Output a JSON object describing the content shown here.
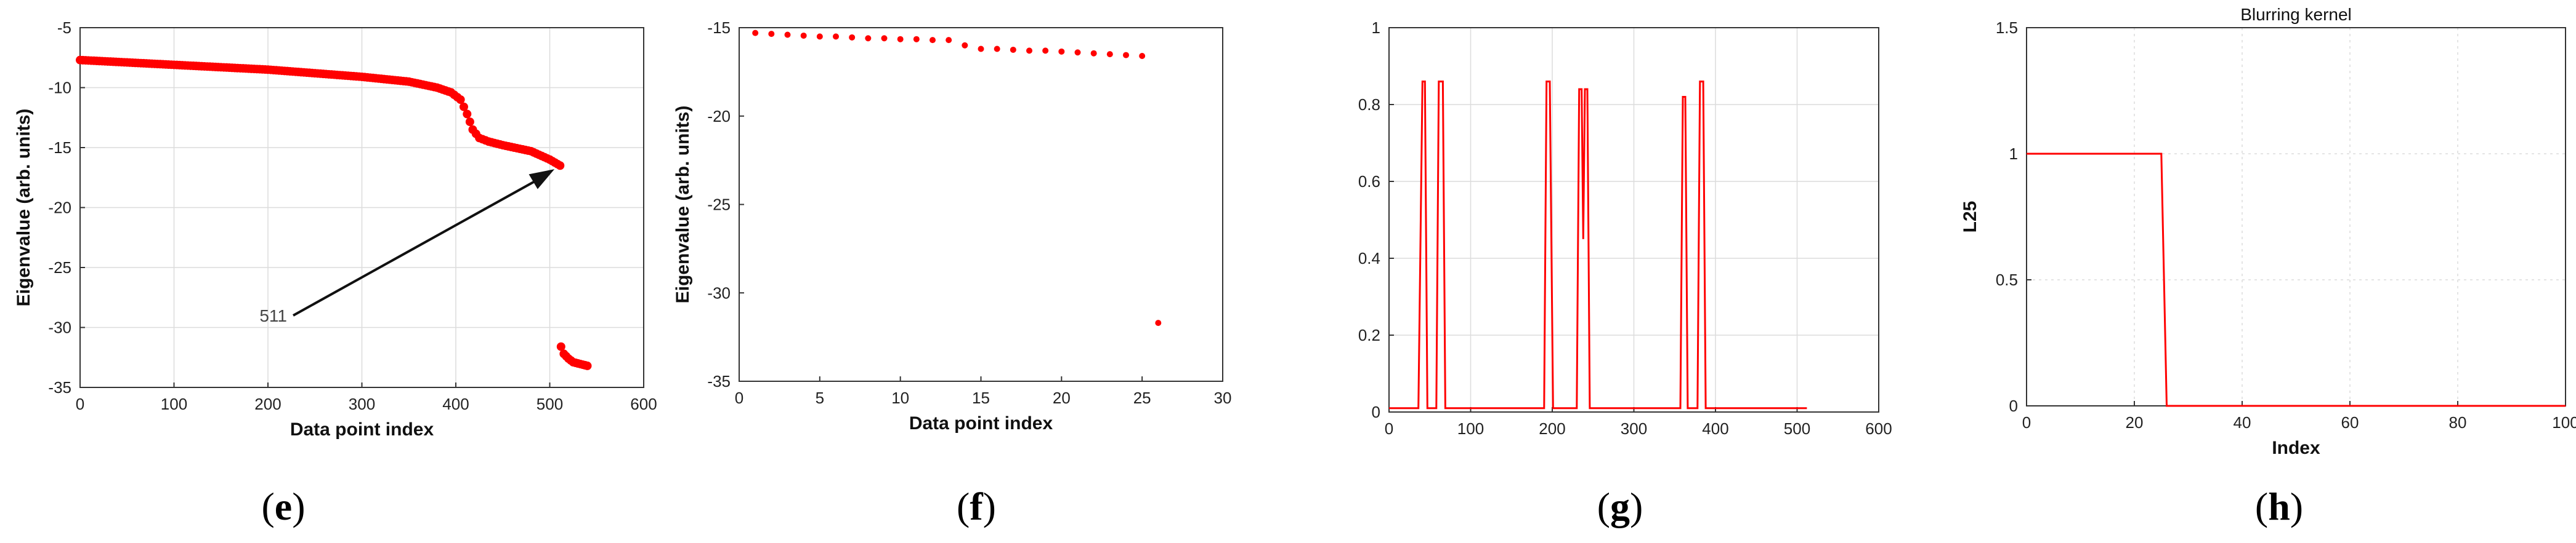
{
  "chart_data": [
    {
      "panel_label": "e",
      "type": "scatter",
      "xlabel": "Data point index",
      "ylabel": "Eigenvalue (arb. units)",
      "xlim": [
        0,
        600
      ],
      "ylim": [
        -35,
        -5
      ],
      "xticks": [
        0,
        100,
        200,
        300,
        400,
        500,
        600
      ],
      "yticks": [
        -5,
        -10,
        -15,
        -20,
        -25,
        -30,
        -35
      ],
      "grid": true,
      "color": "#ff0000",
      "annotation": {
        "text": "511",
        "x": 240,
        "y": -29,
        "arrow_to": [
          505,
          -16.8
        ]
      },
      "series": [
        {
          "x": [
            0,
            50,
            100,
            150,
            200,
            250,
            300,
            350,
            380,
            395,
            405,
            412,
            418,
            425,
            435,
            450,
            480,
            500,
            511
          ],
          "y": [
            -7.7,
            -7.9,
            -8.1,
            -8.3,
            -8.5,
            -8.8,
            -9.1,
            -9.5,
            -10.0,
            -10.4,
            -11.0,
            -12.2,
            -13.5,
            -14.2,
            -14.5,
            -14.8,
            -15.3,
            -16.0,
            -16.5
          ]
        },
        {
          "x": [
            512,
            515,
            520,
            525,
            530,
            535,
            540
          ],
          "y": [
            -31.6,
            -32.2,
            -32.6,
            -32.9,
            -33.0,
            -33.1,
            -33.2
          ]
        }
      ]
    },
    {
      "panel_label": "f",
      "type": "scatter",
      "xlabel": "Data point index",
      "ylabel": "Eigenvalue (arb. units)",
      "xlim": [
        0,
        30
      ],
      "ylim": [
        -35,
        -15
      ],
      "xticks": [
        0,
        5,
        10,
        15,
        20,
        25,
        30
      ],
      "yticks": [
        -15,
        -20,
        -25,
        -30,
        -35
      ],
      "grid": false,
      "color": "#ff0000",
      "series": [
        {
          "x": [
            1,
            2,
            3,
            4,
            5,
            6,
            7,
            8,
            9,
            10,
            11,
            12,
            13,
            14,
            15,
            16,
            17,
            18,
            19,
            20,
            21,
            22,
            23,
            24,
            25,
            26
          ],
          "y": [
            -15.3,
            -15.35,
            -15.4,
            -15.45,
            -15.5,
            -15.5,
            -15.55,
            -15.6,
            -15.6,
            -15.65,
            -15.65,
            -15.7,
            -15.7,
            -16.0,
            -16.2,
            -16.2,
            -16.25,
            -16.3,
            -16.3,
            -16.35,
            -16.4,
            -16.45,
            -16.5,
            -16.55,
            -16.6,
            -31.7
          ]
        }
      ]
    },
    {
      "panel_label": "g",
      "type": "line",
      "xlabel": "",
      "ylabel": "",
      "xlim": [
        0,
        600
      ],
      "ylim": [
        0,
        1
      ],
      "xticks": [
        0,
        100,
        200,
        300,
        400,
        500,
        600
      ],
      "yticks": [
        0,
        0.2,
        0.4,
        0.6,
        0.8,
        1
      ],
      "grid": true,
      "color": "#ff0000",
      "series": [
        {
          "x": [
            0,
            36,
            41,
            44,
            47,
            54,
            58,
            61,
            66,
            69,
            73,
            190,
            193,
            197,
            201,
            230,
            233,
            236,
            238,
            240,
            243,
            246,
            357,
            360,
            363,
            366,
            378,
            381,
            385,
            388,
            512
          ],
          "y": [
            0.01,
            0.01,
            0.86,
            0.86,
            0.01,
            0.01,
            0.01,
            0.86,
            0.86,
            0.01,
            0.01,
            0.01,
            0.86,
            0.86,
            0.01,
            0.01,
            0.84,
            0.84,
            0.45,
            0.84,
            0.84,
            0.01,
            0.01,
            0.82,
            0.82,
            0.01,
            0.01,
            0.86,
            0.86,
            0.01,
            0.01
          ]
        }
      ]
    },
    {
      "panel_label": "h",
      "type": "line",
      "title": "Blurring kernel",
      "xlabel": "Index",
      "ylabel": "L25",
      "xlim": [
        0,
        100
      ],
      "ylim": [
        0,
        1.5
      ],
      "xticks": [
        0,
        20,
        40,
        60,
        80,
        100
      ],
      "yticks": [
        0,
        0.5,
        1,
        1.5
      ],
      "grid": true,
      "color": "#ff0000",
      "series": [
        {
          "x": [
            0,
            25,
            26,
            100
          ],
          "y": [
            1,
            1,
            0,
            0
          ]
        }
      ]
    }
  ]
}
